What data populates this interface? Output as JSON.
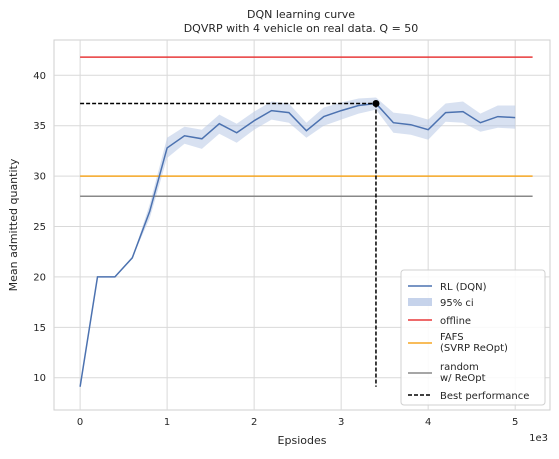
{
  "chart_data": {
    "type": "line",
    "title": "DQN learning curve",
    "subtitle": "DQVRP with 4 vehicle on real data. Q = 50",
    "xlabel": "Epsiodes",
    "ylabel": "Mean admitted quantity",
    "x_offset_label": "1e3",
    "xlim": [
      -0.3,
      5.4
    ],
    "ylim": [
      6.8,
      43.5
    ],
    "xticks": [
      0,
      1,
      2,
      3,
      4,
      5
    ],
    "yticks": [
      10,
      15,
      20,
      25,
      30,
      35,
      40
    ],
    "grid": true,
    "legend_position": "lower-right",
    "x": [
      0,
      0.2,
      0.4,
      0.6,
      0.8,
      1.0,
      1.2,
      1.4,
      1.6,
      1.8,
      2.0,
      2.2,
      2.4,
      2.6,
      2.8,
      3.0,
      3.2,
      3.4,
      3.6,
      3.8,
      4.0,
      4.2,
      4.4,
      4.6,
      4.8,
      5.0
    ],
    "series": [
      {
        "name": "RL (DQN)",
        "color": "#4c72b0",
        "values": [
          9.1,
          20.0,
          20.0,
          21.9,
          26.5,
          32.8,
          34.0,
          33.7,
          35.2,
          34.3,
          35.5,
          36.5,
          36.3,
          34.5,
          35.9,
          36.5,
          37.0,
          37.2,
          35.3,
          35.1,
          34.6,
          36.3,
          36.4,
          35.3,
          35.9,
          35.8
        ]
      }
    ],
    "ci": {
      "name": "95% ci",
      "color": "#4c72b0",
      "lower": [
        9.1,
        20.0,
        20.0,
        21.9,
        25.8,
        31.8,
        33.2,
        32.7,
        34.2,
        33.3,
        34.6,
        35.6,
        35.3,
        33.8,
        35.0,
        35.6,
        36.2,
        36.6,
        34.3,
        34.1,
        33.6,
        35.4,
        35.3,
        34.4,
        34.8,
        34.7
      ],
      "upper": [
        9.1,
        20.0,
        20.0,
        21.9,
        27.2,
        33.8,
        34.9,
        34.6,
        36.1,
        35.2,
        36.4,
        37.4,
        37.2,
        35.3,
        36.8,
        37.3,
        37.7,
        37.8,
        36.3,
        36.1,
        35.6,
        37.2,
        37.4,
        36.2,
        37.0,
        37.0
      ]
    },
    "reference_lines": [
      {
        "name": "offline",
        "color": "#e8393a",
        "y": 41.8,
        "x_range": [
          0,
          5.2
        ]
      },
      {
        "name": "FAFS\n(SVRP ReOpt)",
        "color": "#f5a623",
        "y": 30.0,
        "x_range": [
          0,
          5.2
        ]
      },
      {
        "name": "random\nw/ ReOpt",
        "color": "#888888",
        "y": 28.0,
        "x_range": [
          0,
          5.2
        ]
      }
    ],
    "best_performance": {
      "name": "Best performance",
      "color": "#000000",
      "x": 3.4,
      "y": 37.2,
      "y_bottom": 9.1
    }
  }
}
